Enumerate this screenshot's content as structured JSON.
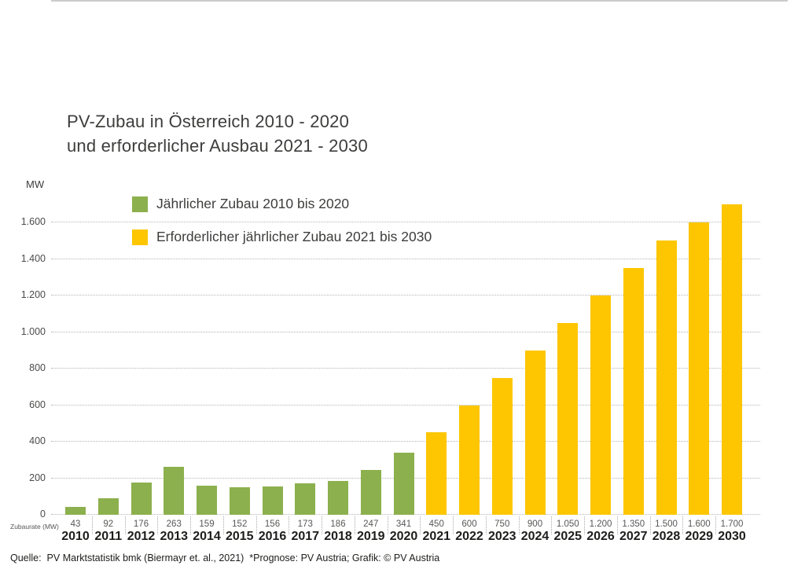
{
  "title": {
    "line1": "PV-Zubau in Österreich 2010 - 2020",
    "line2": "und erforderlicher Ausbau 2021 - 2030"
  },
  "value_row_label": "Zubaurate (MW)",
  "footer": "Quelle:  PV Marktstatistik bmk (Biermayr et. al., 2021)  *Prognose: PV Austria; Grafik: © PV Austria",
  "colors": {
    "green": "#8cb04d",
    "yellow": "#fdc600",
    "grid": "#b4b4b4",
    "title_text": "#3d3d3c",
    "value_text": "#575756",
    "year_text": "#1d1d1b"
  },
  "chart_data": {
    "type": "bar",
    "title": "PV-Zubau in Österreich 2010 - 2020 und erforderlicher Ausbau 2021 - 2030",
    "ylabel": "MW",
    "xlabel": "",
    "grid": "horizontal-dotted",
    "legend_position": "top-left-inside",
    "ylim": [
      0,
      1700
    ],
    "yticks": [
      0,
      200,
      400,
      600,
      800,
      1000,
      1200,
      1400,
      1600
    ],
    "ytick_labels": [
      "0",
      "200",
      "400",
      "600",
      "800",
      "1.000",
      "1.200",
      "1.400",
      "1.600"
    ],
    "categories": [
      "2010",
      "2011",
      "2012",
      "2013",
      "2014",
      "2015",
      "2016",
      "2017",
      "2018",
      "2019",
      "2020",
      "2021",
      "2022",
      "2023",
      "2024",
      "2025",
      "2026",
      "2027",
      "2028",
      "2029",
      "2030"
    ],
    "values": [
      43,
      92,
      176,
      263,
      159,
      152,
      156,
      173,
      186,
      247,
      341,
      450,
      600,
      750,
      900,
      1050,
      1200,
      1350,
      1500,
      1600,
      1700
    ],
    "value_labels": [
      "43",
      "92",
      "176",
      "263",
      "159",
      "152",
      "156",
      "173",
      "186",
      "247",
      "341",
      "450",
      "600",
      "750",
      "900",
      "1.050",
      "1.200",
      "1.350",
      "1.500",
      "1.600",
      "1.700"
    ],
    "series": [
      {
        "name": "Jährlicher Zubau 2010 bis 2020",
        "color": "#8cb04d",
        "categories": [
          "2010",
          "2011",
          "2012",
          "2013",
          "2014",
          "2015",
          "2016",
          "2017",
          "2018",
          "2019",
          "2020"
        ],
        "values": [
          43,
          92,
          176,
          263,
          159,
          152,
          156,
          173,
          186,
          247,
          341
        ]
      },
      {
        "name": "Erforderlicher jährlicher Zubau 2021 bis 2030",
        "color": "#fdc600",
        "categories": [
          "2021",
          "2022",
          "2023",
          "2024",
          "2025",
          "2026",
          "2027",
          "2028",
          "2029",
          "2030"
        ],
        "values": [
          450,
          600,
          750,
          900,
          1050,
          1200,
          1350,
          1500,
          1600,
          1700
        ]
      }
    ]
  }
}
